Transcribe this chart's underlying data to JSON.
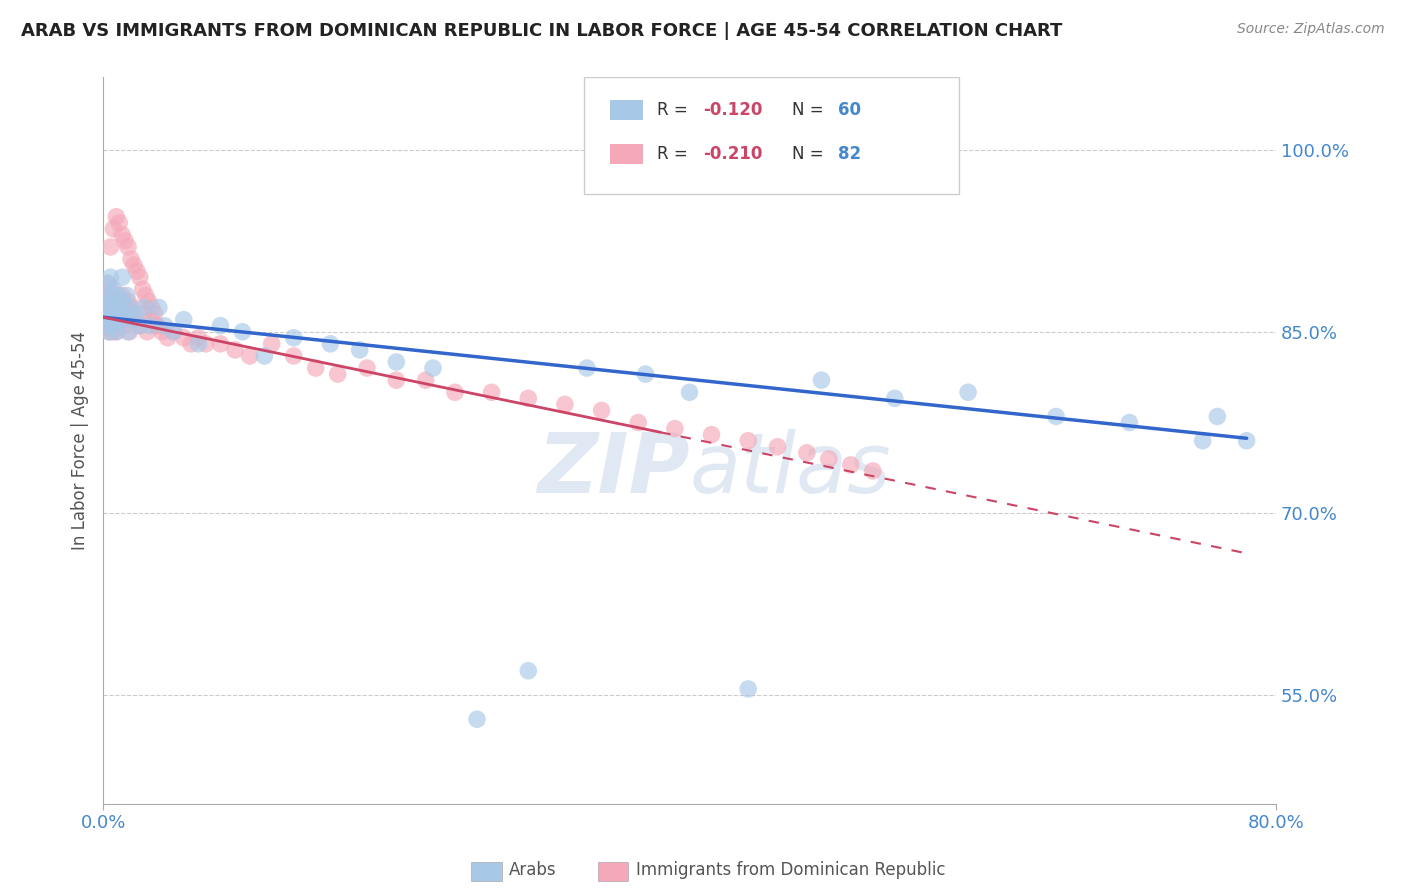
{
  "title": "ARAB VS IMMIGRANTS FROM DOMINICAN REPUBLIC IN LABOR FORCE | AGE 45-54 CORRELATION CHART",
  "source": "Source: ZipAtlas.com",
  "ylabel": "In Labor Force | Age 45-54",
  "x_tick_labels": [
    "0.0%",
    "80.0%"
  ],
  "x_tick_values": [
    0.0,
    0.8
  ],
  "y_tick_labels": [
    "55.0%",
    "70.0%",
    "85.0%",
    "100.0%"
  ],
  "y_tick_values": [
    0.55,
    0.7,
    0.85,
    1.0
  ],
  "xlim": [
    0.0,
    0.8
  ],
  "ylim": [
    0.46,
    1.06
  ],
  "blue_color": "#a8c8e8",
  "pink_color": "#f4a8b8",
  "blue_line_color": "#3366cc",
  "pink_line_color": "#cc4466",
  "watermark": "ZIPatlas",
  "watermark_color": "#c8d8ea",
  "background_color": "#ffffff",
  "grid_color": "#cccccc",
  "title_color": "#222222",
  "axis_label_color": "#555555",
  "tick_color": "#4488cc",
  "R_value_color": "#cc4466",
  "N_value_color": "#4488cc",
  "arab_x": [
    0.001,
    0.002,
    0.002,
    0.003,
    0.003,
    0.004,
    0.004,
    0.005,
    0.005,
    0.006,
    0.006,
    0.007,
    0.007,
    0.007,
    0.008,
    0.008,
    0.009,
    0.009,
    0.01,
    0.01,
    0.011,
    0.012,
    0.013,
    0.013,
    0.015,
    0.016,
    0.017,
    0.018,
    0.02,
    0.022,
    0.025,
    0.028,
    0.032,
    0.038,
    0.042,
    0.048,
    0.055,
    0.065,
    0.08,
    0.095,
    0.11,
    0.13,
    0.155,
    0.175,
    0.2,
    0.225,
    0.255,
    0.29,
    0.33,
    0.37,
    0.4,
    0.44,
    0.49,
    0.54,
    0.59,
    0.65,
    0.7,
    0.75,
    0.76,
    0.78
  ],
  "arab_y": [
    0.86,
    0.87,
    0.855,
    0.875,
    0.89,
    0.865,
    0.85,
    0.88,
    0.895,
    0.86,
    0.875,
    0.855,
    0.87,
    0.885,
    0.86,
    0.875,
    0.85,
    0.87,
    0.865,
    0.88,
    0.87,
    0.86,
    0.875,
    0.895,
    0.865,
    0.88,
    0.85,
    0.87,
    0.86,
    0.865,
    0.855,
    0.87,
    0.855,
    0.87,
    0.855,
    0.85,
    0.86,
    0.84,
    0.855,
    0.85,
    0.83,
    0.845,
    0.84,
    0.835,
    0.825,
    0.82,
    0.53,
    0.57,
    0.82,
    0.815,
    0.8,
    0.555,
    0.81,
    0.795,
    0.8,
    0.78,
    0.775,
    0.76,
    0.78,
    0.76
  ],
  "dom_x": [
    0.001,
    0.002,
    0.002,
    0.003,
    0.003,
    0.004,
    0.004,
    0.005,
    0.005,
    0.006,
    0.006,
    0.007,
    0.007,
    0.008,
    0.008,
    0.009,
    0.009,
    0.01,
    0.011,
    0.012,
    0.013,
    0.014,
    0.015,
    0.016,
    0.017,
    0.018,
    0.019,
    0.02,
    0.022,
    0.025,
    0.028,
    0.03,
    0.033,
    0.036,
    0.04,
    0.044,
    0.048,
    0.055,
    0.06,
    0.065,
    0.07,
    0.08,
    0.09,
    0.1,
    0.115,
    0.13,
    0.145,
    0.16,
    0.18,
    0.2,
    0.22,
    0.24,
    0.265,
    0.29,
    0.315,
    0.34,
    0.365,
    0.39,
    0.415,
    0.44,
    0.46,
    0.48,
    0.495,
    0.51,
    0.525,
    0.005,
    0.007,
    0.009,
    0.011,
    0.013,
    0.015,
    0.017,
    0.019,
    0.021,
    0.023,
    0.025,
    0.027,
    0.029,
    0.031,
    0.033,
    0.035,
    0.037
  ],
  "dom_y": [
    0.87,
    0.88,
    0.86,
    0.875,
    0.89,
    0.85,
    0.865,
    0.875,
    0.885,
    0.85,
    0.87,
    0.86,
    0.875,
    0.855,
    0.87,
    0.85,
    0.865,
    0.875,
    0.86,
    0.87,
    0.88,
    0.855,
    0.87,
    0.86,
    0.875,
    0.85,
    0.865,
    0.87,
    0.86,
    0.855,
    0.865,
    0.85,
    0.86,
    0.855,
    0.85,
    0.845,
    0.85,
    0.845,
    0.84,
    0.845,
    0.84,
    0.84,
    0.835,
    0.83,
    0.84,
    0.83,
    0.82,
    0.815,
    0.82,
    0.81,
    0.81,
    0.8,
    0.8,
    0.795,
    0.79,
    0.785,
    0.775,
    0.77,
    0.765,
    0.76,
    0.755,
    0.75,
    0.745,
    0.74,
    0.735,
    0.92,
    0.935,
    0.945,
    0.94,
    0.93,
    0.925,
    0.92,
    0.91,
    0.905,
    0.9,
    0.895,
    0.885,
    0.88,
    0.875,
    0.87,
    0.865,
    0.855
  ]
}
